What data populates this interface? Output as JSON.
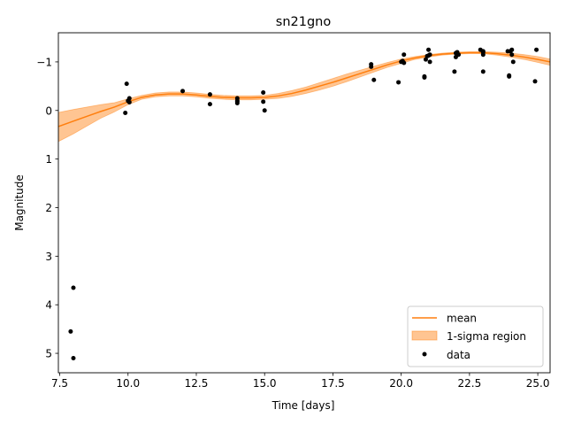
{
  "chart_data": {
    "type": "scatter",
    "title": "sn21gno",
    "xlabel": "Time [days]",
    "ylabel": "Magnitude",
    "xlim": [
      7.45,
      25.45
    ],
    "ylim": [
      5.4,
      -1.6
    ],
    "y_inverted": true,
    "grid": false,
    "legend_position": "lower right",
    "x_ticks": [
      7.5,
      10.0,
      12.5,
      15.0,
      17.5,
      20.0,
      22.5,
      25.0
    ],
    "x_tick_labels": [
      "7.5",
      "10.0",
      "12.5",
      "15.0",
      "17.5",
      "20.0",
      "22.5",
      "25.0"
    ],
    "y_ticks": [
      -1,
      0,
      1,
      2,
      3,
      4,
      5
    ],
    "y_tick_labels": [
      "−1",
      "0",
      "1",
      "2",
      "3",
      "4",
      "5"
    ],
    "series": [
      {
        "name": "mean",
        "kind": "line",
        "color": "#ff7f0e",
        "x": [
          7.45,
          8.0,
          8.5,
          9.0,
          9.5,
          10.0,
          10.5,
          11.0,
          11.5,
          12.0,
          12.5,
          13.0,
          13.5,
          14.0,
          14.5,
          15.0,
          15.5,
          16.0,
          16.5,
          17.0,
          17.5,
          18.0,
          18.5,
          19.0,
          19.5,
          20.0,
          20.5,
          21.0,
          21.5,
          22.0,
          22.5,
          23.0,
          23.5,
          24.0,
          24.5,
          25.0,
          25.45
        ],
        "y": [
          0.33,
          0.22,
          0.12,
          0.02,
          -0.07,
          -0.18,
          -0.27,
          -0.32,
          -0.34,
          -0.34,
          -0.32,
          -0.29,
          -0.27,
          -0.26,
          -0.26,
          -0.27,
          -0.3,
          -0.35,
          -0.42,
          -0.5,
          -0.58,
          -0.67,
          -0.76,
          -0.85,
          -0.94,
          -1.02,
          -1.08,
          -1.13,
          -1.16,
          -1.18,
          -1.19,
          -1.19,
          -1.17,
          -1.14,
          -1.1,
          -1.05,
          -1.0
        ]
      },
      {
        "name": "1-sigma region",
        "kind": "band",
        "color": "#ff7f0e",
        "opacity": 0.45,
        "x": [
          7.45,
          8.0,
          8.5,
          9.0,
          9.5,
          10.0,
          10.5,
          11.0,
          11.5,
          12.0,
          12.5,
          13.0,
          13.5,
          14.0,
          14.5,
          15.0,
          15.5,
          16.0,
          16.5,
          17.0,
          17.5,
          18.0,
          18.5,
          19.0,
          19.5,
          20.0,
          20.5,
          21.0,
          21.5,
          22.0,
          22.5,
          23.0,
          23.5,
          24.0,
          24.5,
          25.0,
          25.45
        ],
        "lower": [
          0.04,
          -0.02,
          -0.07,
          -0.12,
          -0.16,
          -0.24,
          -0.31,
          -0.36,
          -0.38,
          -0.38,
          -0.36,
          -0.33,
          -0.31,
          -0.3,
          -0.3,
          -0.31,
          -0.35,
          -0.41,
          -0.48,
          -0.57,
          -0.66,
          -0.75,
          -0.83,
          -0.91,
          -0.99,
          -1.06,
          -1.11,
          -1.15,
          -1.18,
          -1.2,
          -1.21,
          -1.21,
          -1.2,
          -1.18,
          -1.15,
          -1.11,
          -1.06
        ],
        "upper": [
          0.64,
          0.48,
          0.32,
          0.16,
          0.03,
          -0.12,
          -0.23,
          -0.28,
          -0.3,
          -0.3,
          -0.28,
          -0.25,
          -0.23,
          -0.22,
          -0.22,
          -0.23,
          -0.25,
          -0.29,
          -0.35,
          -0.42,
          -0.5,
          -0.59,
          -0.69,
          -0.79,
          -0.89,
          -0.97,
          -1.05,
          -1.1,
          -1.14,
          -1.16,
          -1.17,
          -1.17,
          -1.14,
          -1.1,
          -1.05,
          -0.99,
          -0.93
        ]
      },
      {
        "name": "data",
        "kind": "points",
        "color": "#000000",
        "x": [
          7.9,
          8.0,
          8.0,
          9.9,
          9.95,
          10.0,
          10.05,
          10.05,
          12.0,
          13.0,
          13.0,
          14.0,
          14.0,
          14.0,
          14.0,
          14.95,
          14.95,
          15.0,
          18.9,
          18.9,
          19.0,
          19.9,
          20.0,
          20.05,
          20.1,
          20.1,
          20.85,
          20.85,
          20.9,
          20.95,
          21.0,
          21.0,
          21.05,
          21.05,
          21.95,
          22.0,
          22.0,
          22.05,
          22.1,
          22.9,
          23.0,
          23.0,
          23.0,
          23.0,
          23.9,
          23.95,
          23.95,
          24.0,
          24.05,
          24.05,
          24.1,
          24.9,
          24.95
        ],
        "y": [
          4.55,
          3.65,
          5.1,
          0.05,
          -0.55,
          -0.2,
          -0.25,
          -0.17,
          -0.4,
          -0.33,
          -0.13,
          -0.25,
          -0.2,
          -0.18,
          -0.15,
          -0.37,
          -0.18,
          0.0,
          -0.9,
          -0.95,
          -0.63,
          -0.58,
          -1.0,
          -1.02,
          -1.15,
          -0.98,
          -0.68,
          -0.7,
          -1.05,
          -1.12,
          -1.13,
          -1.25,
          -1.15,
          -1.0,
          -0.8,
          -1.1,
          -1.18,
          -1.2,
          -1.15,
          -1.25,
          -1.2,
          -1.15,
          -1.22,
          -0.8,
          -1.22,
          -0.72,
          -0.7,
          -1.22,
          -1.15,
          -1.25,
          -1.0,
          -0.6,
          -1.25
        ]
      }
    ]
  }
}
